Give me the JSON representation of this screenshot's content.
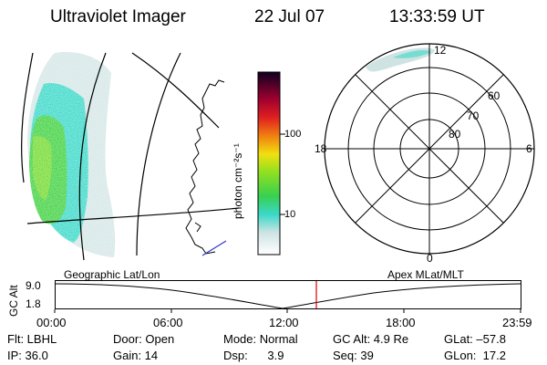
{
  "header": {
    "title": "Ultraviolet Imager",
    "date": "22 Jul 07",
    "time": "13:33:59 UT"
  },
  "colorbar": {
    "units": "photon cm⁻²s⁻¹",
    "ticks": [
      "100",
      "10"
    ]
  },
  "polar": {
    "mlt_labels": {
      "top": "12",
      "left": "18",
      "right": "6",
      "bottom": "0"
    },
    "lat_labels": [
      "60",
      "70",
      "80"
    ]
  },
  "timeline": {
    "ylabel": "GC Alt",
    "y_ticks": [
      "9.0",
      "1.8"
    ],
    "left_title": "Geographic Lat/Lon",
    "right_title": "Apex MLat/MLT",
    "x_ticks": [
      "00:00",
      "06:00",
      "12:00",
      "18:00",
      "23:59"
    ],
    "marker_color": "#dd0000"
  },
  "status": {
    "col1": [
      "Flt: LBHL",
      "IP: 36.0"
    ],
    "col2": [
      "Door: Open",
      "Gain: 14"
    ],
    "col3": [
      "Mode: Normal",
      "Dsp:      3.9"
    ],
    "col4": [
      "GC Alt: 4.9 Re",
      "Seq: 39"
    ],
    "col5": [
      "GLat: –57.8",
      "GLon:  17.2"
    ]
  },
  "colors": {
    "aurora_bright": "#3fd13f",
    "aurora_mid": "#3ad8c8",
    "aurora_dim": "#cfe3e3",
    "coast": "#000000",
    "terminator": "#3333cc"
  }
}
